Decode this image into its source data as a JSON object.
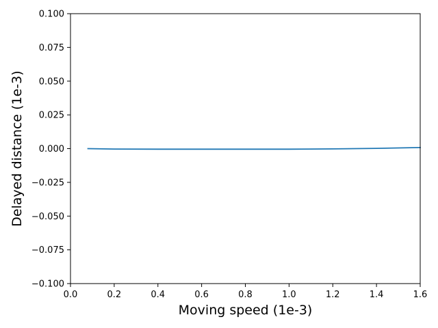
{
  "chart_data": {
    "type": "line",
    "title": "",
    "xlabel": "Moving speed (1e-3)",
    "ylabel": "Delayed distance (1e-3)",
    "xlim": [
      0.0,
      1.6
    ],
    "ylim": [
      -0.1,
      0.1
    ],
    "xticks": [
      0.0,
      0.2,
      0.4,
      0.6,
      0.8,
      1.0,
      1.2,
      1.4,
      1.6
    ],
    "xtick_labels": [
      "0.0",
      "0.2",
      "0.4",
      "0.6",
      "0.8",
      "1.0",
      "1.2",
      "1.4",
      "1.6"
    ],
    "yticks": [
      -0.1,
      -0.075,
      -0.05,
      -0.025,
      0.0,
      0.025,
      0.05,
      0.075,
      0.1
    ],
    "ytick_labels": [
      "−0.100",
      "−0.075",
      "−0.050",
      "−0.025",
      "0.000",
      "0.025",
      "0.050",
      "0.075",
      "0.100"
    ],
    "grid": false,
    "legend": "none",
    "series": [
      {
        "color": "#1f77b4",
        "x": [
          0.08,
          0.2,
          0.4,
          0.6,
          0.8,
          1.0,
          1.1,
          1.2,
          1.3,
          1.4,
          1.5,
          1.6
        ],
        "y": [
          0.0,
          -0.0003,
          -0.0004,
          -0.0004,
          -0.0004,
          -0.0004,
          -0.0003,
          -0.0002,
          0.0,
          0.0002,
          0.0005,
          0.0008
        ]
      }
    ]
  }
}
